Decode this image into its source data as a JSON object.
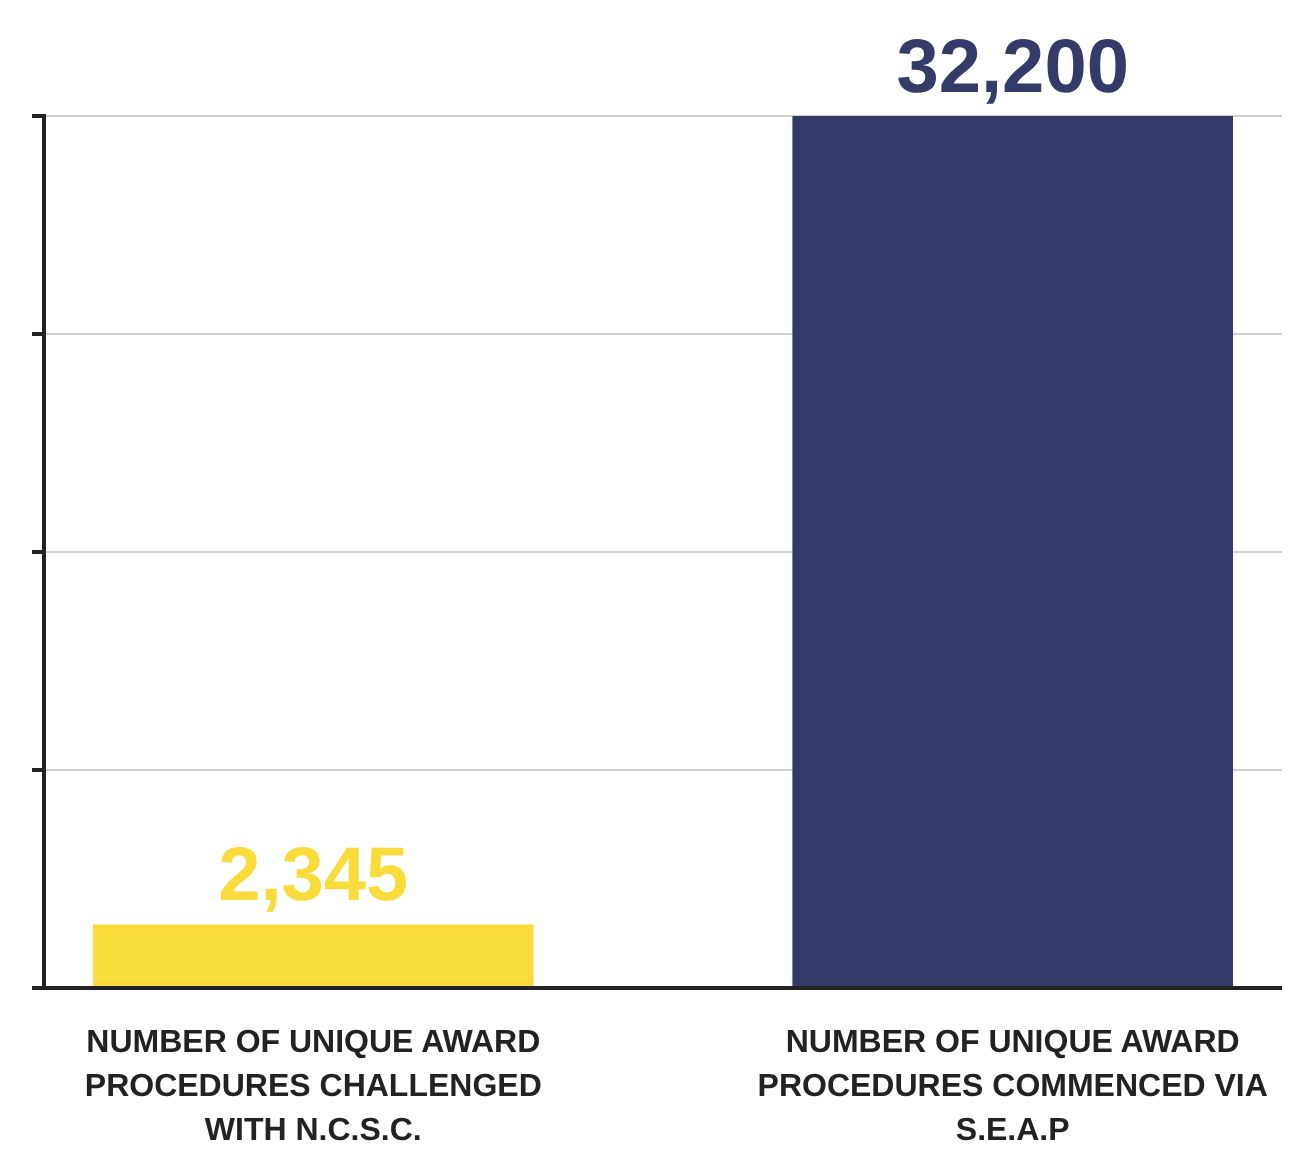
{
  "chart_data": {
    "type": "bar",
    "categories": [
      "NUMBER OF UNIQUE AWARD PROCEDURES CHALLENGED WITH N.C.S.C.",
      "NUMBER OF UNIQUE AWARD PROCEDURES COMMENCED VIA S.E.A.P"
    ],
    "values": [
      2345,
      32200
    ],
    "colors": [
      "#f9dc3c",
      "#343b68"
    ],
    "value_labels": [
      "2,345",
      "32,200"
    ],
    "ylim": [
      0,
      32200
    ],
    "yticks": [
      {
        "value": 0,
        "label": null
      },
      {
        "value": 8050,
        "label": null
      },
      {
        "value": 16100,
        "label": null
      },
      {
        "value": 24150,
        "label": null
      },
      {
        "value": 32200,
        "label": null
      }
    ],
    "tick_labels": "x",
    "grid": "y"
  }
}
